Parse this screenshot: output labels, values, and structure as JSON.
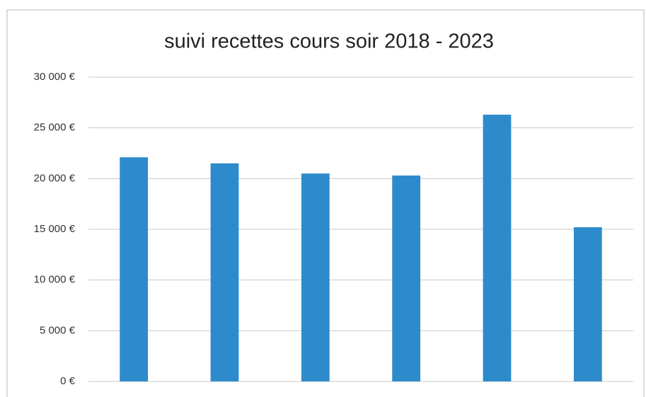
{
  "chart_data": {
    "type": "bar",
    "title": "suivi recettes cours soir 2018 - 2023",
    "categories": [
      null,
      null,
      null,
      null,
      null,
      null
    ],
    "values": [
      22100,
      21500,
      20500,
      20300,
      26300,
      15200
    ],
    "color": "#2e8bcb",
    "ylim": [
      0,
      30000
    ],
    "yticks": [
      {
        "value": 0,
        "label": "0 €"
      },
      {
        "value": 5000,
        "label": "5 000 €"
      },
      {
        "value": 10000,
        "label": "10 000 €"
      },
      {
        "value": 15000,
        "label": "15 000 €"
      },
      {
        "value": 20000,
        "label": "20 000 €"
      },
      {
        "value": 25000,
        "label": "25 000 €"
      },
      {
        "value": 30000,
        "label": "30 000 €"
      }
    ],
    "grid": true
  }
}
